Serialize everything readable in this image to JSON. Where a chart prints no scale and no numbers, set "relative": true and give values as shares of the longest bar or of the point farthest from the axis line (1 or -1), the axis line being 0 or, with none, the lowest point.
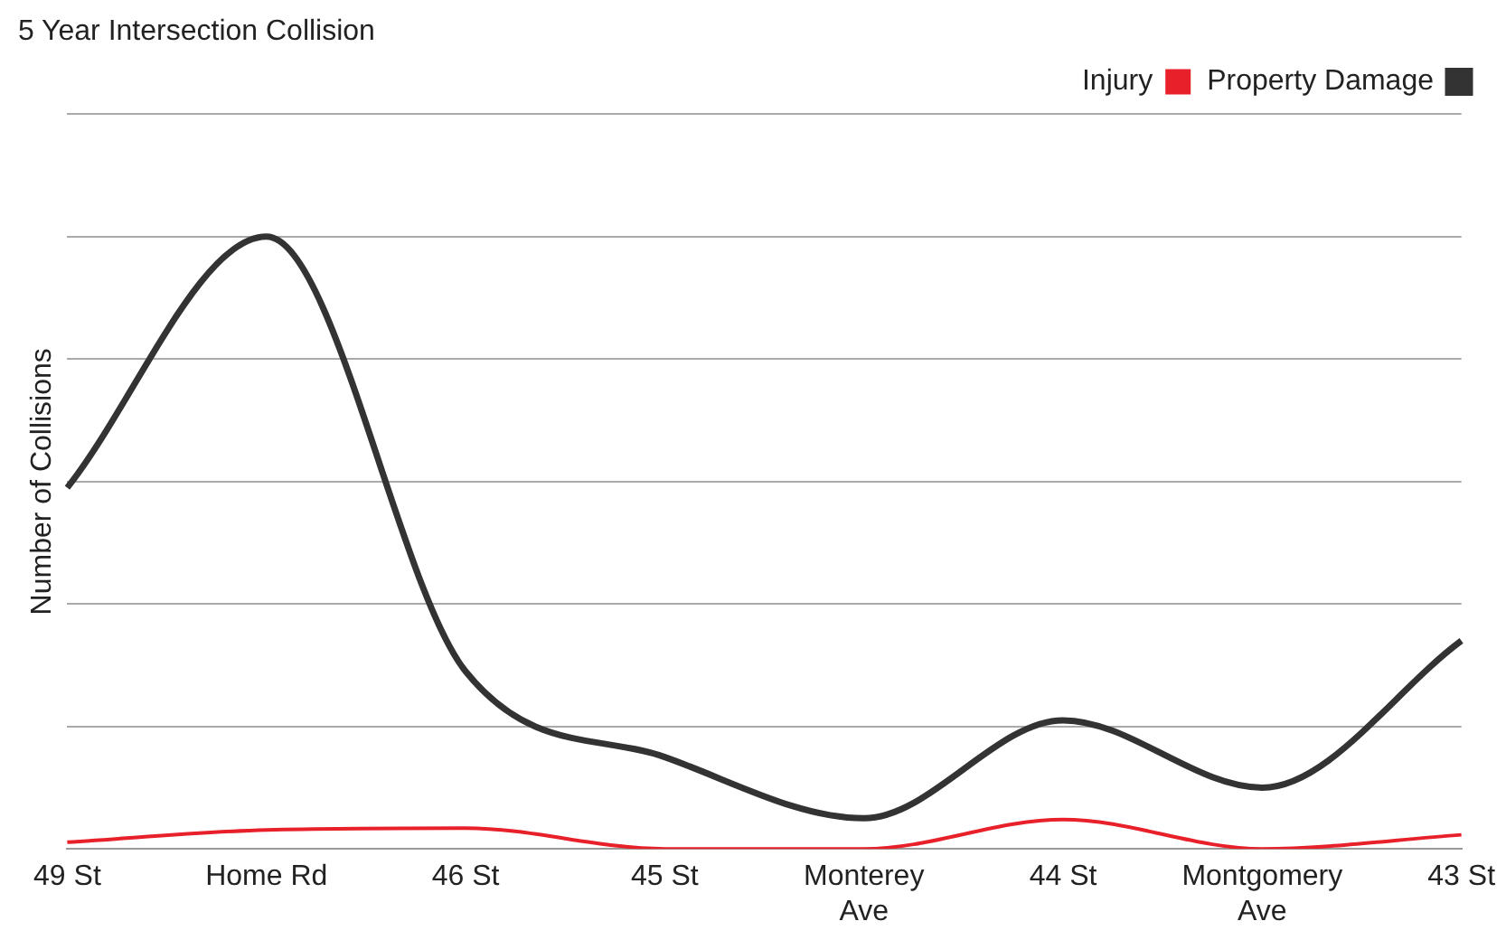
{
  "chart_data": {
    "type": "line",
    "title": "5 Year Intersection Collision",
    "ylabel": "Number of Collisions",
    "relative": true,
    "grid": "y",
    "legend": "top right",
    "marker": "none",
    "categories": [
      "49 St",
      "Home Rd",
      "46 St",
      "45 St",
      "Monterey Ave",
      "44 St",
      "Montgomery Ave",
      "43 St"
    ],
    "series": [
      {
        "name": "Injury",
        "color": "#e8202a",
        "values": [
          0.011,
          0.031,
          0.034,
          0,
          0,
          0.048,
          0,
          0.023
        ]
      },
      {
        "name": "Property Damage",
        "color": "#333333",
        "values": [
          0.59,
          1,
          0.29,
          0.15,
          0.05,
          0.21,
          0.1,
          0.34
        ]
      }
    ]
  }
}
